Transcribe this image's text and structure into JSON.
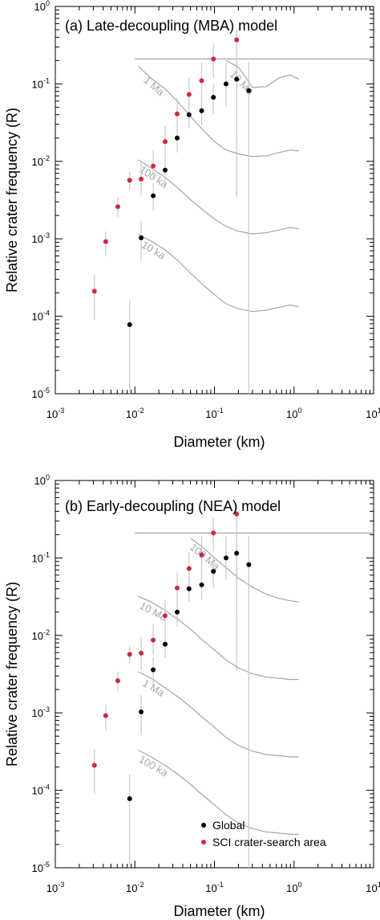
{
  "colors": {
    "global": "#000000",
    "sci": "#d2283c",
    "model": "#a6a6a6",
    "errorbar": "#c8c8c8"
  },
  "legend": {
    "global_label": "Global",
    "sci_label": "SCI crater-search area",
    "placement": "bottom-right of panel (b)"
  },
  "chart_data": [
    {
      "type": "scatter",
      "title": "(a) Late-decoupling (MBA) model",
      "xlabel": "Diameter (km)",
      "ylabel": "Relative crater frequency (R)",
      "xscale": "log",
      "yscale": "log",
      "xlim": [
        0.001,
        10
      ],
      "ylim": [
        1e-05,
        1
      ],
      "x_ticks": [
        "10-3",
        "10-2",
        "10-1",
        "100",
        "101"
      ],
      "y_ticks": [
        "100",
        "10-1",
        "10-2",
        "10-3",
        "10-4",
        "10-5"
      ],
      "series": [
        {
          "name": "SCI crater-search area",
          "points": [
            {
              "x": 0.0031,
              "y": 0.00021,
              "lo": 9e-05,
              "hi": 0.00034
            },
            {
              "x": 0.0043,
              "y": 0.00092,
              "lo": 0.0006,
              "hi": 0.00125
            },
            {
              "x": 0.0061,
              "y": 0.0026,
              "lo": 0.0019,
              "hi": 0.0034
            },
            {
              "x": 0.0086,
              "y": 0.0057,
              "lo": 0.0043,
              "hi": 0.0073
            },
            {
              "x": 0.012,
              "y": 0.0059,
              "lo": 0.0036,
              "hi": 0.0095
            },
            {
              "x": 0.017,
              "y": 0.0087,
              "lo": 0.0057,
              "hi": 0.014
            },
            {
              "x": 0.024,
              "y": 0.018,
              "lo": 0.011,
              "hi": 0.029
            },
            {
              "x": 0.034,
              "y": 0.041,
              "lo": 0.025,
              "hi": 0.065
            },
            {
              "x": 0.048,
              "y": 0.073,
              "lo": 0.044,
              "hi": 0.12
            },
            {
              "x": 0.069,
              "y": 0.11,
              "lo": 0.061,
              "hi": 0.19
            },
            {
              "x": 0.097,
              "y": 0.21,
              "lo": 0.12,
              "hi": 0.33
            },
            {
              "x": 0.19,
              "y": 0.37,
              "lo": 0.0035,
              "hi": 0.51
            }
          ]
        },
        {
          "name": "Global",
          "points": [
            {
              "x": 0.0086,
              "y": 7.8e-05,
              "lo": 5e-06,
              "hi": 0.00016
            },
            {
              "x": 0.012,
              "y": 0.00103,
              "lo": 0.00052,
              "hi": 0.0017
            },
            {
              "x": 0.017,
              "y": 0.0036,
              "lo": 0.0023,
              "hi": 0.0052
            },
            {
              "x": 0.024,
              "y": 0.0077,
              "lo": 0.0051,
              "hi": 0.011
            },
            {
              "x": 0.034,
              "y": 0.02,
              "lo": 0.013,
              "hi": 0.031
            },
            {
              "x": 0.048,
              "y": 0.04,
              "lo": 0.027,
              "hi": 0.058
            },
            {
              "x": 0.069,
              "y": 0.045,
              "lo": 0.029,
              "hi": 0.068
            },
            {
              "x": 0.097,
              "y": 0.067,
              "lo": 0.041,
              "hi": 0.1
            },
            {
              "x": 0.14,
              "y": 0.1,
              "lo": 0.052,
              "hi": 0.19
            },
            {
              "x": 0.19,
              "y": 0.115,
              "lo": 0.019,
              "hi": 0.2
            },
            {
              "x": 0.27,
              "y": 0.082,
              "lo": 1e-05,
              "hi": 0.19
            }
          ]
        }
      ],
      "saturation_line": {
        "y": 0.21,
        "x_from": 0.01,
        "x_to": 10
      },
      "model_curves": [
        {
          "label": "10 Ma",
          "points": [
            [
              0.14,
              0.2
            ],
            [
              0.2,
              0.165
            ],
            [
              0.3,
              0.09
            ],
            [
              0.45,
              0.092
            ],
            [
              0.65,
              0.12
            ],
            [
              0.9,
              0.13
            ],
            [
              1.15,
              0.115
            ]
          ]
        },
        {
          "label": "1 Ma",
          "points": [
            [
              0.011,
              0.17
            ],
            [
              0.016,
              0.118
            ],
            [
              0.024,
              0.086
            ],
            [
              0.035,
              0.058
            ],
            [
              0.05,
              0.038
            ],
            [
              0.07,
              0.026
            ],
            [
              0.1,
              0.018
            ],
            [
              0.14,
              0.014
            ],
            [
              0.2,
              0.0125
            ],
            [
              0.3,
              0.0115
            ],
            [
              0.45,
              0.0118
            ],
            [
              0.65,
              0.013
            ],
            [
              0.9,
              0.014
            ],
            [
              1.15,
              0.0136
            ]
          ]
        },
        {
          "label": "100 ka",
          "points": [
            [
              0.011,
              0.0105
            ],
            [
              0.016,
              0.0082
            ],
            [
              0.024,
              0.0062
            ],
            [
              0.035,
              0.0045
            ],
            [
              0.05,
              0.0032
            ],
            [
              0.07,
              0.0024
            ],
            [
              0.1,
              0.0018
            ],
            [
              0.14,
              0.00145
            ],
            [
              0.2,
              0.00125
            ],
            [
              0.3,
              0.00116
            ],
            [
              0.45,
              0.0012
            ],
            [
              0.65,
              0.0013
            ],
            [
              0.9,
              0.0014
            ],
            [
              1.15,
              0.00135
            ]
          ]
        },
        {
          "label": "10 ka",
          "points": [
            [
              0.011,
              0.00115
            ],
            [
              0.016,
              0.00093
            ],
            [
              0.024,
              0.00072
            ],
            [
              0.035,
              0.00052
            ],
            [
              0.05,
              0.00036
            ],
            [
              0.07,
              0.00026
            ],
            [
              0.1,
              0.00019
            ],
            [
              0.14,
              0.000145
            ],
            [
              0.2,
              0.000125
            ],
            [
              0.3,
              0.000115
            ],
            [
              0.45,
              0.00012
            ],
            [
              0.65,
              0.00013
            ],
            [
              0.9,
              0.00014
            ],
            [
              1.15,
              0.000133
            ]
          ]
        }
      ]
    },
    {
      "type": "scatter",
      "title": "(b) Early-decoupling (NEA) model",
      "xlabel": "Diameter (km)",
      "ylabel": "Relative crater frequency (R)",
      "xscale": "log",
      "yscale": "log",
      "xlim": [
        0.001,
        10
      ],
      "ylim": [
        1e-05,
        1
      ],
      "x_ticks": [
        "10-3",
        "10-2",
        "10-1",
        "100",
        "101"
      ],
      "y_ticks": [
        "100",
        "10-1",
        "10-2",
        "10-3",
        "10-4",
        "10-5"
      ],
      "series": [
        {
          "name": "SCI crater-search area",
          "points": [
            {
              "x": 0.0031,
              "y": 0.00021,
              "lo": 9e-05,
              "hi": 0.00034
            },
            {
              "x": 0.0043,
              "y": 0.00092,
              "lo": 0.0006,
              "hi": 0.00125
            },
            {
              "x": 0.0061,
              "y": 0.0026,
              "lo": 0.0019,
              "hi": 0.0034
            },
            {
              "x": 0.0086,
              "y": 0.0057,
              "lo": 0.0043,
              "hi": 0.0073
            },
            {
              "x": 0.012,
              "y": 0.0059,
              "lo": 0.0036,
              "hi": 0.0095
            },
            {
              "x": 0.017,
              "y": 0.0087,
              "lo": 0.0057,
              "hi": 0.014
            },
            {
              "x": 0.024,
              "y": 0.018,
              "lo": 0.011,
              "hi": 0.029
            },
            {
              "x": 0.034,
              "y": 0.041,
              "lo": 0.025,
              "hi": 0.065
            },
            {
              "x": 0.048,
              "y": 0.073,
              "lo": 0.044,
              "hi": 0.12
            },
            {
              "x": 0.069,
              "y": 0.11,
              "lo": 0.061,
              "hi": 0.19
            },
            {
              "x": 0.097,
              "y": 0.21,
              "lo": 0.12,
              "hi": 0.33
            },
            {
              "x": 0.19,
              "y": 0.37,
              "lo": 0.0035,
              "hi": 0.51
            }
          ]
        },
        {
          "name": "Global",
          "points": [
            {
              "x": 0.0086,
              "y": 7.8e-05,
              "lo": 5e-06,
              "hi": 0.00016
            },
            {
              "x": 0.012,
              "y": 0.00103,
              "lo": 0.00052,
              "hi": 0.0017
            },
            {
              "x": 0.017,
              "y": 0.0036,
              "lo": 0.0023,
              "hi": 0.0052
            },
            {
              "x": 0.024,
              "y": 0.0077,
              "lo": 0.0051,
              "hi": 0.011
            },
            {
              "x": 0.034,
              "y": 0.02,
              "lo": 0.013,
              "hi": 0.031
            },
            {
              "x": 0.048,
              "y": 0.04,
              "lo": 0.027,
              "hi": 0.058
            },
            {
              "x": 0.069,
              "y": 0.045,
              "lo": 0.029,
              "hi": 0.068
            },
            {
              "x": 0.097,
              "y": 0.067,
              "lo": 0.041,
              "hi": 0.1
            },
            {
              "x": 0.14,
              "y": 0.1,
              "lo": 0.052,
              "hi": 0.19
            },
            {
              "x": 0.19,
              "y": 0.115,
              "lo": 0.019,
              "hi": 0.2
            },
            {
              "x": 0.27,
              "y": 0.082,
              "lo": 1e-05,
              "hi": 0.19
            }
          ]
        }
      ],
      "saturation_line": {
        "y": 0.21,
        "x_from": 0.01,
        "x_to": 10
      },
      "model_curves": [
        {
          "label": "100 Ma",
          "points": [
            [
              0.05,
              0.18
            ],
            [
              0.07,
              0.14
            ],
            [
              0.1,
              0.1
            ],
            [
              0.14,
              0.075
            ],
            [
              0.2,
              0.055
            ],
            [
              0.3,
              0.042
            ],
            [
              0.45,
              0.034
            ],
            [
              0.65,
              0.03
            ],
            [
              0.9,
              0.028
            ],
            [
              1.15,
              0.027
            ]
          ]
        },
        {
          "label": "10 Ma",
          "points": [
            [
              0.011,
              0.032
            ],
            [
              0.016,
              0.027
            ],
            [
              0.024,
              0.021
            ],
            [
              0.035,
              0.016
            ],
            [
              0.05,
              0.012
            ],
            [
              0.07,
              0.0088
            ],
            [
              0.1,
              0.0065
            ],
            [
              0.14,
              0.0048
            ],
            [
              0.2,
              0.0038
            ],
            [
              0.3,
              0.0032
            ],
            [
              0.45,
              0.0029
            ],
            [
              0.65,
              0.0028
            ],
            [
              0.9,
              0.0027
            ],
            [
              1.15,
              0.0027
            ]
          ]
        },
        {
          "label": "1 Ma",
          "points": [
            [
              0.011,
              0.0034
            ],
            [
              0.016,
              0.0028
            ],
            [
              0.024,
              0.0021
            ],
            [
              0.035,
              0.0016
            ],
            [
              0.05,
              0.0012
            ],
            [
              0.07,
              0.00088
            ],
            [
              0.1,
              0.00065
            ],
            [
              0.14,
              0.00048
            ],
            [
              0.2,
              0.00038
            ],
            [
              0.3,
              0.00032
            ],
            [
              0.45,
              0.00029
            ],
            [
              0.65,
              0.00028
            ],
            [
              0.9,
              0.00027
            ],
            [
              1.15,
              0.00027
            ]
          ]
        },
        {
          "label": "100 ka",
          "points": [
            [
              0.011,
              0.00033
            ],
            [
              0.016,
              0.00027
            ],
            [
              0.024,
              0.00021
            ],
            [
              0.035,
              0.00016
            ],
            [
              0.05,
              0.00012
            ],
            [
              0.07,
              8.8e-05
            ],
            [
              0.1,
              6.5e-05
            ],
            [
              0.14,
              4.8e-05
            ],
            [
              0.2,
              3.8e-05
            ],
            [
              0.3,
              3.2e-05
            ],
            [
              0.45,
              2.9e-05
            ],
            [
              0.65,
              2.8e-05
            ],
            [
              0.9,
              2.7e-05
            ],
            [
              1.15,
              2.7e-05
            ]
          ]
        }
      ]
    }
  ]
}
